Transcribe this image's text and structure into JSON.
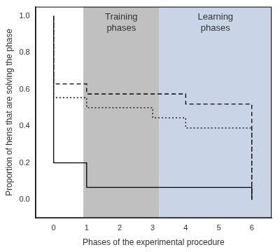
{
  "chart_data": {
    "type": "step",
    "x_label": "Phases of the experimental procedure",
    "y_label": "Proportion of hens that are solving the phase",
    "xlim": [
      -0.55,
      6.6
    ],
    "xticks": [
      0,
      1,
      2,
      3,
      4,
      5,
      6
    ],
    "ylim": [
      -0.1,
      1.05
    ],
    "yticks": [
      {
        "value": 0,
        "label": "0.0"
      },
      0.2,
      0.4,
      0.6,
      0.8,
      {
        "value": 1,
        "label": "1.0"
      }
    ],
    "grid": false,
    "regions": [
      {
        "label": "Training phases",
        "x": [
          0.9,
          3.2
        ],
        "color": "#c0c0c0"
      },
      {
        "label": "Learning phases",
        "x": [
          3.2,
          6.6
        ],
        "color": "#c9d5e6"
      }
    ],
    "series": [
      {
        "color": "#000000",
        "line_style": "solid",
        "x": [
          0,
          1,
          4,
          6,
          6
        ],
        "values": [
          1,
          0.2,
          0.067,
          0.067,
          0
        ]
      },
      {
        "color": "#000000",
        "line_style": "dashed",
        "x": [
          0,
          1,
          4,
          5,
          6,
          6
        ],
        "values": [
          1,
          0.63,
          0.575,
          0.52,
          0.52,
          0
        ]
      },
      {
        "color": "#000000",
        "line_style": "dotted",
        "x": [
          0,
          1,
          3,
          4,
          5,
          6,
          6
        ],
        "values": [
          1,
          0.555,
          0.5,
          0.445,
          0.39,
          0.39,
          0
        ]
      }
    ]
  }
}
